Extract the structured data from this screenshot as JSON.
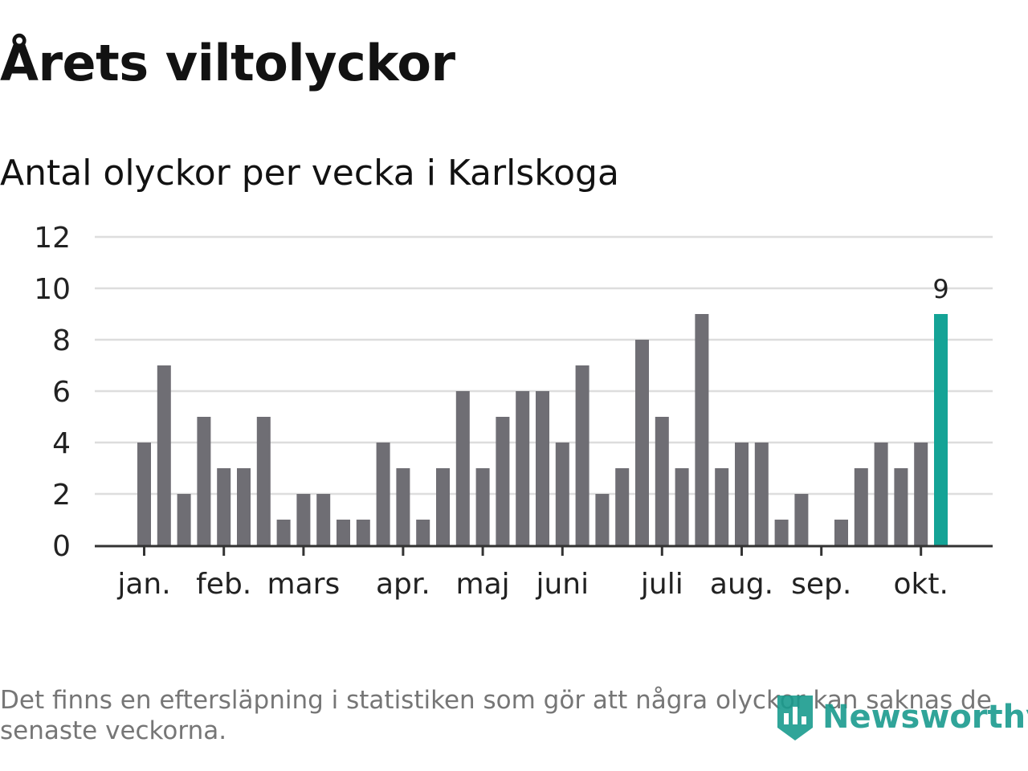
{
  "title": "Årets viltolyckor",
  "subtitle": "Antal olyckor per vecka i Karlskoga",
  "footnote": {
    "line1": "Det finns en eftersläpning i statistiken som gör att några olyckor kan saknas de",
    "line2": "senaste veckorna."
  },
  "logo": {
    "text": "Newsworthy",
    "icon": "newsworthy-logo-icon"
  },
  "colors": {
    "bar": "#6f6e74",
    "highlight": "#14a396",
    "grid": "#dddddd",
    "axis": "#333333",
    "text": "#222222"
  },
  "chart_data": {
    "type": "bar",
    "title": "Antal olyckor per vecka i Karlskoga",
    "xlabel": "",
    "ylabel": "",
    "ylim": [
      0,
      12
    ],
    "yticks": [
      0,
      2,
      4,
      6,
      8,
      10,
      12
    ],
    "grid": true,
    "values": [
      4,
      7,
      2,
      5,
      3,
      3,
      5,
      1,
      2,
      2,
      1,
      1,
      4,
      3,
      1,
      3,
      6,
      3,
      5,
      6,
      6,
      4,
      7,
      2,
      3,
      8,
      5,
      3,
      9,
      3,
      4,
      4,
      1,
      2,
      0,
      1,
      3,
      4,
      3,
      4,
      9
    ],
    "highlight_index": 40,
    "highlight_label": "9",
    "month_ticks": [
      {
        "label": "jan.",
        "week": 0
      },
      {
        "label": "feb.",
        "week": 4
      },
      {
        "label": "mars",
        "week": 8
      },
      {
        "label": "apr.",
        "week": 13
      },
      {
        "label": "maj",
        "week": 17
      },
      {
        "label": "juni",
        "week": 21
      },
      {
        "label": "juli",
        "week": 26
      },
      {
        "label": "aug.",
        "week": 30
      },
      {
        "label": "sep.",
        "week": 34
      },
      {
        "label": "okt.",
        "week": 39
      }
    ]
  }
}
